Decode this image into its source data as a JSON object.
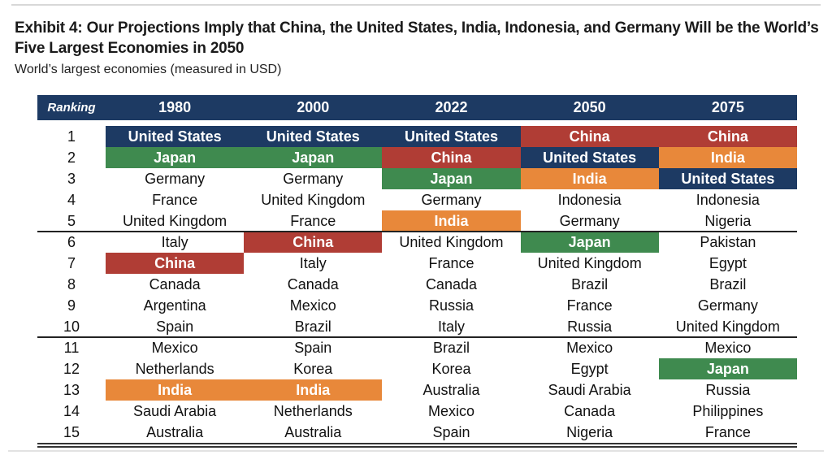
{
  "title": "Exhibit 4: Our Projections Imply that China, the United States, India, Indonesia, and Germany Will be the World’s Five Largest Economies in 2050",
  "subtitle": "World’s largest economies (measured in USD)",
  "colors": {
    "header": "#1d3a63",
    "United States": "#1d3a63",
    "China": "#b03d35",
    "Japan": "#3f8a4f",
    "India": "#e8883a"
  },
  "table": {
    "rank_header": "Ranking",
    "columns": [
      "1980",
      "2000",
      "2022",
      "2050",
      "2075"
    ],
    "rows": [
      {
        "rank": "1",
        "cells": [
          "United States",
          "United States",
          "United States",
          "China",
          "China"
        ]
      },
      {
        "rank": "2",
        "cells": [
          "Japan",
          "Japan",
          "China",
          "United States",
          "India"
        ]
      },
      {
        "rank": "3",
        "cells": [
          "Germany",
          "Germany",
          "Japan",
          "India",
          "United States"
        ]
      },
      {
        "rank": "4",
        "cells": [
          "France",
          "United Kingdom",
          "Germany",
          "Indonesia",
          "Indonesia"
        ]
      },
      {
        "rank": "5",
        "cells": [
          "United Kingdom",
          "France",
          "India",
          "Germany",
          "Nigeria"
        ]
      },
      {
        "rank": "6",
        "cells": [
          "Italy",
          "China",
          "United Kingdom",
          "Japan",
          "Pakistan"
        ]
      },
      {
        "rank": "7",
        "cells": [
          "China",
          "Italy",
          "France",
          "United Kingdom",
          "Egypt"
        ]
      },
      {
        "rank": "8",
        "cells": [
          "Canada",
          "Canada",
          "Canada",
          "Brazil",
          "Brazil"
        ]
      },
      {
        "rank": "9",
        "cells": [
          "Argentina",
          "Mexico",
          "Russia",
          "France",
          "Germany"
        ]
      },
      {
        "rank": "10",
        "cells": [
          "Spain",
          "Brazil",
          "Italy",
          "Russia",
          "United Kingdom"
        ]
      },
      {
        "rank": "11",
        "cells": [
          "Mexico",
          "Spain",
          "Brazil",
          "Mexico",
          "Mexico"
        ]
      },
      {
        "rank": "12",
        "cells": [
          "Netherlands",
          "Korea",
          "Korea",
          "Egypt",
          "Japan"
        ]
      },
      {
        "rank": "13",
        "cells": [
          "India",
          "India",
          "Australia",
          "Saudi Arabia",
          "Russia"
        ]
      },
      {
        "rank": "14",
        "cells": [
          "Saudi Arabia",
          "Netherlands",
          "Mexico",
          "Canada",
          "Philippines"
        ]
      },
      {
        "rank": "15",
        "cells": [
          "Australia",
          "Australia",
          "Spain",
          "Nigeria",
          "France"
        ]
      }
    ]
  }
}
